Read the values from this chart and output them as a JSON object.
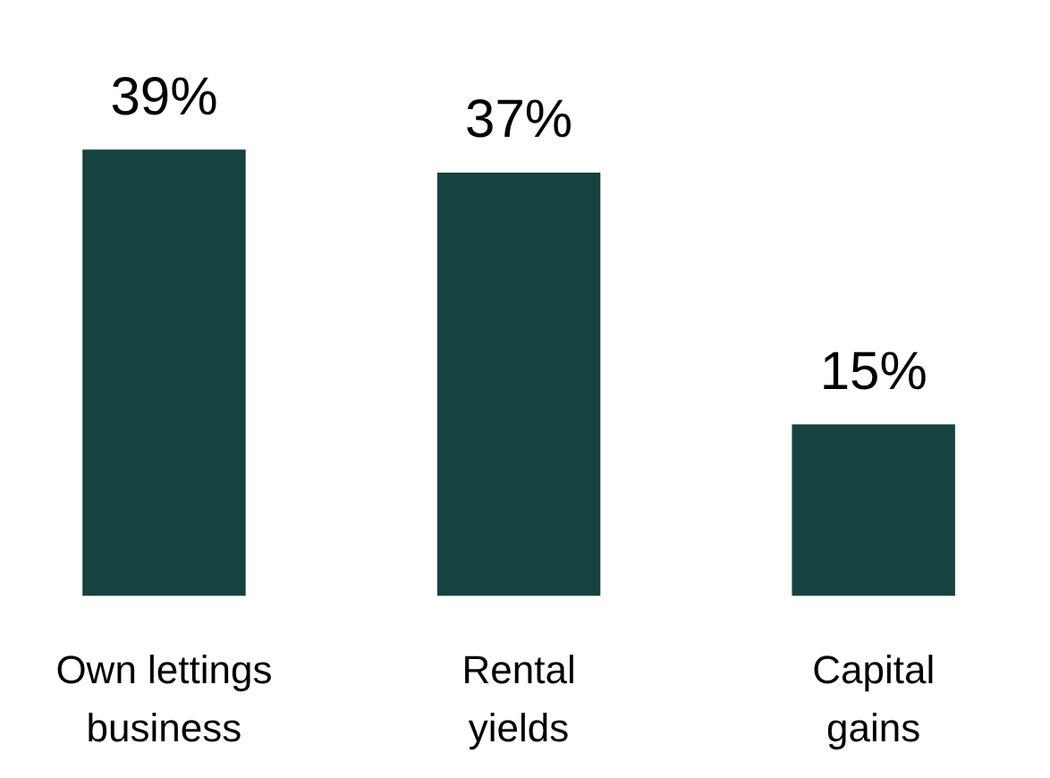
{
  "chart_data": {
    "type": "bar",
    "categories": [
      "Own lettings business",
      "Rental yields",
      "Capital gains"
    ],
    "values": [
      39,
      37,
      15
    ],
    "color": "#16433f",
    "value_labels": [
      "39%",
      "37%",
      "15%"
    ],
    "grid": false
  }
}
